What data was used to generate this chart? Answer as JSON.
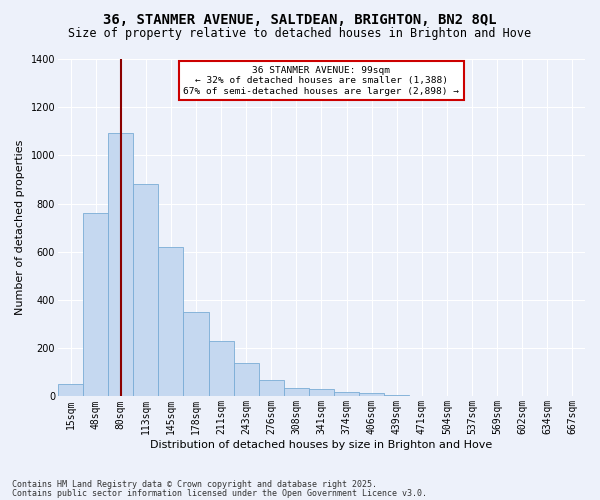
{
  "title": "36, STANMER AVENUE, SALTDEAN, BRIGHTON, BN2 8QL",
  "subtitle": "Size of property relative to detached houses in Brighton and Hove",
  "xlabel": "Distribution of detached houses by size in Brighton and Hove",
  "ylabel": "Number of detached properties",
  "categories": [
    "15sqm",
    "48sqm",
    "80sqm",
    "113sqm",
    "145sqm",
    "178sqm",
    "211sqm",
    "243sqm",
    "276sqm",
    "308sqm",
    "341sqm",
    "374sqm",
    "406sqm",
    "439sqm",
    "471sqm",
    "504sqm",
    "537sqm",
    "569sqm",
    "602sqm",
    "634sqm",
    "667sqm"
  ],
  "values": [
    50,
    760,
    1095,
    880,
    620,
    350,
    230,
    140,
    70,
    35,
    30,
    20,
    15,
    5,
    3,
    2,
    1,
    1,
    0,
    0,
    1
  ],
  "bar_color": "#c5d8f0",
  "bar_edge_color": "#7aacd6",
  "bg_color": "#edf1fa",
  "grid_color": "#d8dff0",
  "vline_color": "#8b0000",
  "annotation_text": "36 STANMER AVENUE: 99sqm\n← 32% of detached houses are smaller (1,388)\n67% of semi-detached houses are larger (2,898) →",
  "annotation_box_color": "#cc0000",
  "footer1": "Contains HM Land Registry data © Crown copyright and database right 2025.",
  "footer2": "Contains public sector information licensed under the Open Government Licence v3.0.",
  "ylim": [
    0,
    1400
  ],
  "yticks": [
    0,
    200,
    400,
    600,
    800,
    1000,
    1200,
    1400
  ],
  "figsize": [
    6.0,
    5.0
  ],
  "dpi": 100,
  "title_fontsize": 10,
  "subtitle_fontsize": 8.5,
  "xlabel_fontsize": 8,
  "ylabel_fontsize": 8,
  "tick_fontsize": 7,
  "footer_fontsize": 6
}
